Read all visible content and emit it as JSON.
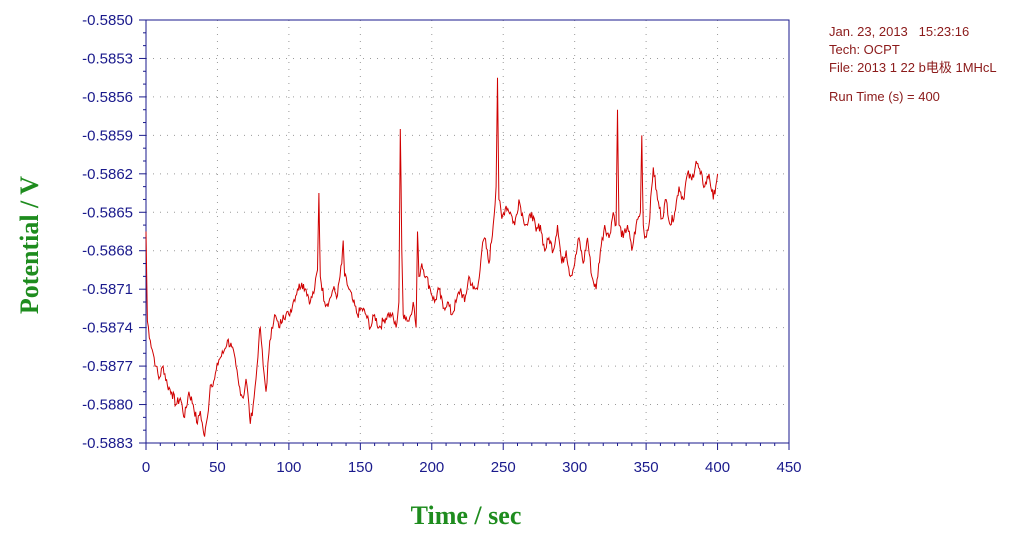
{
  "info": {
    "date_time": "Jan. 23, 2013   15:23:16",
    "tech": "Tech: OCPT",
    "file": "File: 2013 1 22 b电极 1MHcL",
    "run_time": "Run Time (s) = 400"
  },
  "chart_data": {
    "type": "line",
    "xlabel": "Time / sec",
    "ylabel": "Potential / V",
    "xlim": [
      0,
      450
    ],
    "ylim": [
      -0.5883,
      -0.585
    ],
    "x_ticks": [
      "0",
      "50",
      "100",
      "150",
      "200",
      "250",
      "300",
      "350",
      "400",
      "450"
    ],
    "y_ticks": [
      "-0.5850",
      "-0.5853",
      "-0.5856",
      "-0.5859",
      "-0.5862",
      "-0.5865",
      "-0.5868",
      "-0.5871",
      "-0.5874",
      "-0.5877",
      "-0.5880",
      "-0.5883"
    ],
    "grid": true,
    "line_color": "#d00000",
    "series": [
      {
        "x": [
          0,
          1,
          3,
          5,
          7,
          9,
          12,
          15,
          18,
          21,
          24,
          27,
          30,
          33,
          36,
          38,
          40,
          41,
          43,
          45,
          48,
          51,
          54,
          57,
          60,
          63,
          65,
          68,
          70,
          72,
          73,
          75,
          77,
          79,
          80,
          82,
          84,
          86,
          88,
          90,
          93,
          96,
          100,
          103,
          106,
          109,
          112,
          115,
          118,
          120,
          121,
          122,
          125,
          128,
          131,
          134,
          137,
          138,
          139,
          142,
          145,
          148,
          151,
          154,
          157,
          160,
          163,
          166,
          169,
          172,
          175,
          177,
          178,
          179,
          180,
          181,
          184,
          187,
          189,
          190,
          191,
          193,
          196,
          199,
          202,
          205,
          208,
          211,
          214,
          217,
          220,
          223,
          226,
          229,
          232,
          235,
          237,
          240,
          243,
          245,
          246,
          247,
          249,
          252,
          255,
          258,
          261,
          264,
          267,
          270,
          273,
          276,
          279,
          282,
          285,
          288,
          291,
          294,
          297,
          300,
          303,
          306,
          309,
          312,
          315,
          318,
          321,
          324,
          327,
          329,
          330,
          331,
          334,
          337,
          340,
          343,
          346,
          347,
          348,
          349,
          352,
          355,
          358,
          361,
          364,
          367,
          370,
          373,
          376,
          379,
          382,
          385,
          388,
          391,
          394,
          397,
          400
        ],
        "y": [
          -0.58665,
          -0.58735,
          -0.5875,
          -0.5876,
          -0.5877,
          -0.5878,
          -0.5877,
          -0.58785,
          -0.5879,
          -0.588,
          -0.58795,
          -0.5881,
          -0.5879,
          -0.588,
          -0.58815,
          -0.58805,
          -0.5882,
          -0.58825,
          -0.5881,
          -0.58785,
          -0.5878,
          -0.58765,
          -0.5876,
          -0.5875,
          -0.58755,
          -0.5877,
          -0.58785,
          -0.58795,
          -0.5878,
          -0.588,
          -0.58815,
          -0.588,
          -0.5878,
          -0.5875,
          -0.5874,
          -0.5877,
          -0.5879,
          -0.5876,
          -0.5874,
          -0.5873,
          -0.5874,
          -0.5873,
          -0.5873,
          -0.5872,
          -0.5871,
          -0.58705,
          -0.5871,
          -0.5872,
          -0.5871,
          -0.58695,
          -0.58635,
          -0.587,
          -0.5872,
          -0.5872,
          -0.5871,
          -0.58715,
          -0.5869,
          -0.58672,
          -0.587,
          -0.5871,
          -0.5872,
          -0.5873,
          -0.58725,
          -0.5873,
          -0.5874,
          -0.5873,
          -0.5874,
          -0.58735,
          -0.5873,
          -0.5873,
          -0.5874,
          -0.5872,
          -0.58585,
          -0.5868,
          -0.5873,
          -0.5873,
          -0.58735,
          -0.5872,
          -0.5874,
          -0.58665,
          -0.587,
          -0.5869,
          -0.587,
          -0.5871,
          -0.5872,
          -0.5871,
          -0.58725,
          -0.5872,
          -0.5873,
          -0.5872,
          -0.5871,
          -0.5872,
          -0.587,
          -0.5871,
          -0.5871,
          -0.5868,
          -0.5867,
          -0.5869,
          -0.5866,
          -0.5863,
          -0.58545,
          -0.5864,
          -0.58655,
          -0.58645,
          -0.5865,
          -0.5866,
          -0.5864,
          -0.58655,
          -0.5866,
          -0.5865,
          -0.58665,
          -0.5866,
          -0.5868,
          -0.5867,
          -0.5868,
          -0.5866,
          -0.5869,
          -0.5868,
          -0.587,
          -0.5869,
          -0.5867,
          -0.5869,
          -0.5867,
          -0.587,
          -0.5871,
          -0.5868,
          -0.5866,
          -0.5867,
          -0.5865,
          -0.5866,
          -0.5857,
          -0.5866,
          -0.5867,
          -0.5866,
          -0.5868,
          -0.5866,
          -0.5865,
          -0.5859,
          -0.5866,
          -0.5867,
          -0.5866,
          -0.58615,
          -0.5864,
          -0.58655,
          -0.5864,
          -0.5866,
          -0.5865,
          -0.5863,
          -0.5864,
          -0.5862,
          -0.58625,
          -0.5861,
          -0.5862,
          -0.5863,
          -0.5862,
          -0.5864,
          -0.5862
        ]
      }
    ]
  }
}
